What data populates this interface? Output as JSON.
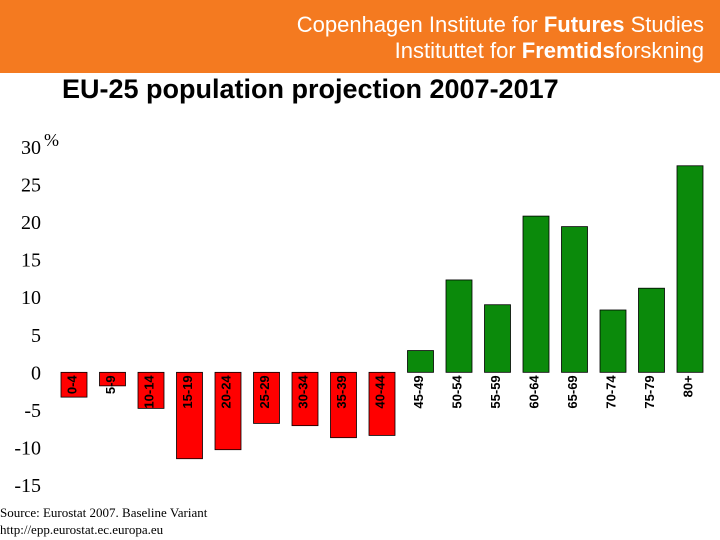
{
  "header": {
    "line1": "Copenhagen Institute for Futures Studies",
    "line1_plain": "Copenhagen Institute for ",
    "line1_bold": "Futures",
    "line1_tail": " Studies",
    "line2_plain": "Instituttet for ",
    "line2_bold": "Fremtids",
    "line2_tail": "forskning",
    "background_color": "#f47a20"
  },
  "chart_data": {
    "type": "bar",
    "title": "EU-25 population projection 2007-2017",
    "ylabel": "%",
    "xlabel": "",
    "ylim": [
      -15,
      30
    ],
    "yticks": [
      30,
      25,
      20,
      15,
      10,
      5,
      0,
      -5,
      -10,
      -15
    ],
    "categories": [
      "0-4",
      "5-9",
      "10-14",
      "15-19",
      "20-24",
      "25-29",
      "30-34",
      "35-39",
      "40-44",
      "45-49",
      "50-54",
      "55-59",
      "60-64",
      "65-69",
      "70-74",
      "75-79",
      "80+"
    ],
    "values": [
      -3.3,
      -1.8,
      -4.8,
      -11.5,
      -10.3,
      -6.8,
      -7.1,
      -8.7,
      -8.4,
      2.9,
      12.3,
      9.0,
      20.8,
      19.4,
      8.3,
      11.2,
      27.5
    ],
    "colors": {
      "positive": "#0b8a0b",
      "negative": "#ff0000"
    },
    "grid": false,
    "legend": "none"
  },
  "source": {
    "line1": "Source: Eurostat 2007. Baseline Variant",
    "line2": "http://epp.eurostat.ec.europa.eu"
  }
}
